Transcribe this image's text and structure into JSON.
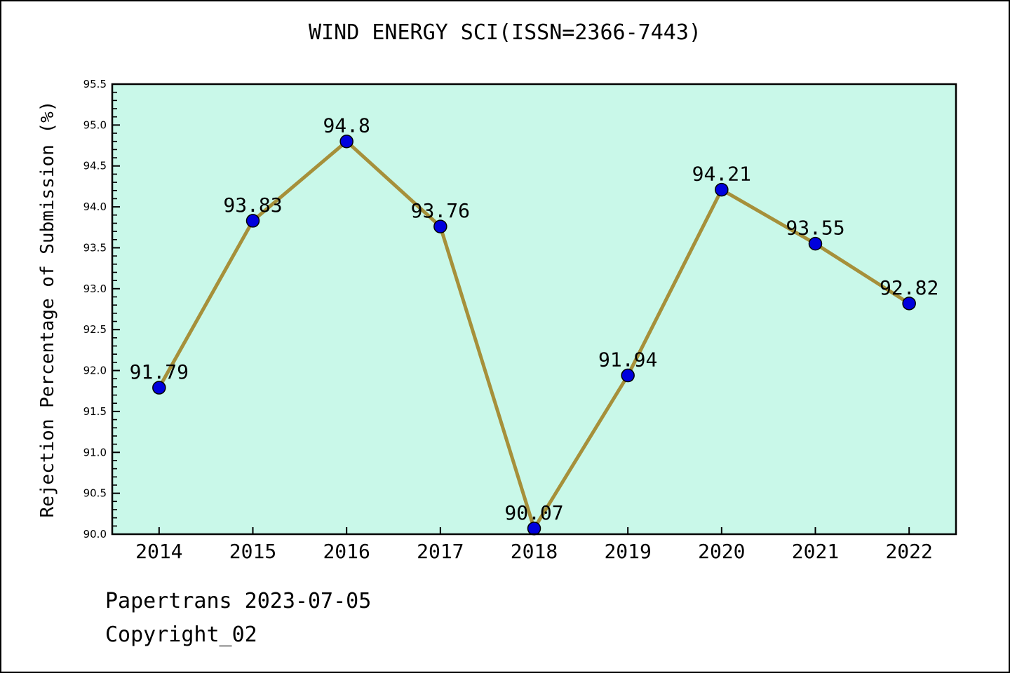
{
  "chart_data": {
    "type": "line",
    "title": "WIND ENERGY SCI(ISSN=2366-7443)",
    "x": [
      2014,
      2015,
      2016,
      2017,
      2018,
      2019,
      2020,
      2021,
      2022
    ],
    "values": [
      91.79,
      93.83,
      94.8,
      93.76,
      90.07,
      91.94,
      94.21,
      93.55,
      92.82
    ],
    "point_labels": [
      "91.79",
      "93.83",
      "94.8",
      "93.76",
      "90.07",
      "91.94",
      "94.21",
      "93.55",
      "92.82"
    ],
    "xlabel": "",
    "ylabel": "Rejection Percentage of Submission (%)",
    "xticks": [
      2014,
      2015,
      2016,
      2017,
      2018,
      2019,
      2020,
      2021,
      2022
    ],
    "xtick_labels": [
      "2014",
      "2015",
      "2016",
      "2017",
      "2018",
      "2019",
      "2020",
      "2021",
      "2022"
    ],
    "xlim": [
      2013.5,
      2022.5
    ],
    "ylim": [
      90.0,
      95.5
    ],
    "ytick_major_step": 0.5,
    "ytick_minor_step": 0.1,
    "grid": false,
    "legend": "none",
    "colors": {
      "plot_bg": "#c9f8e9",
      "line": "#a6903a",
      "marker": "#0000dd",
      "marker_edge": "#000000",
      "frame": "#000000",
      "text": "#000000"
    }
  },
  "footer": {
    "line1": "Papertrans 2023-07-05",
    "line2": "Copyright_02"
  }
}
